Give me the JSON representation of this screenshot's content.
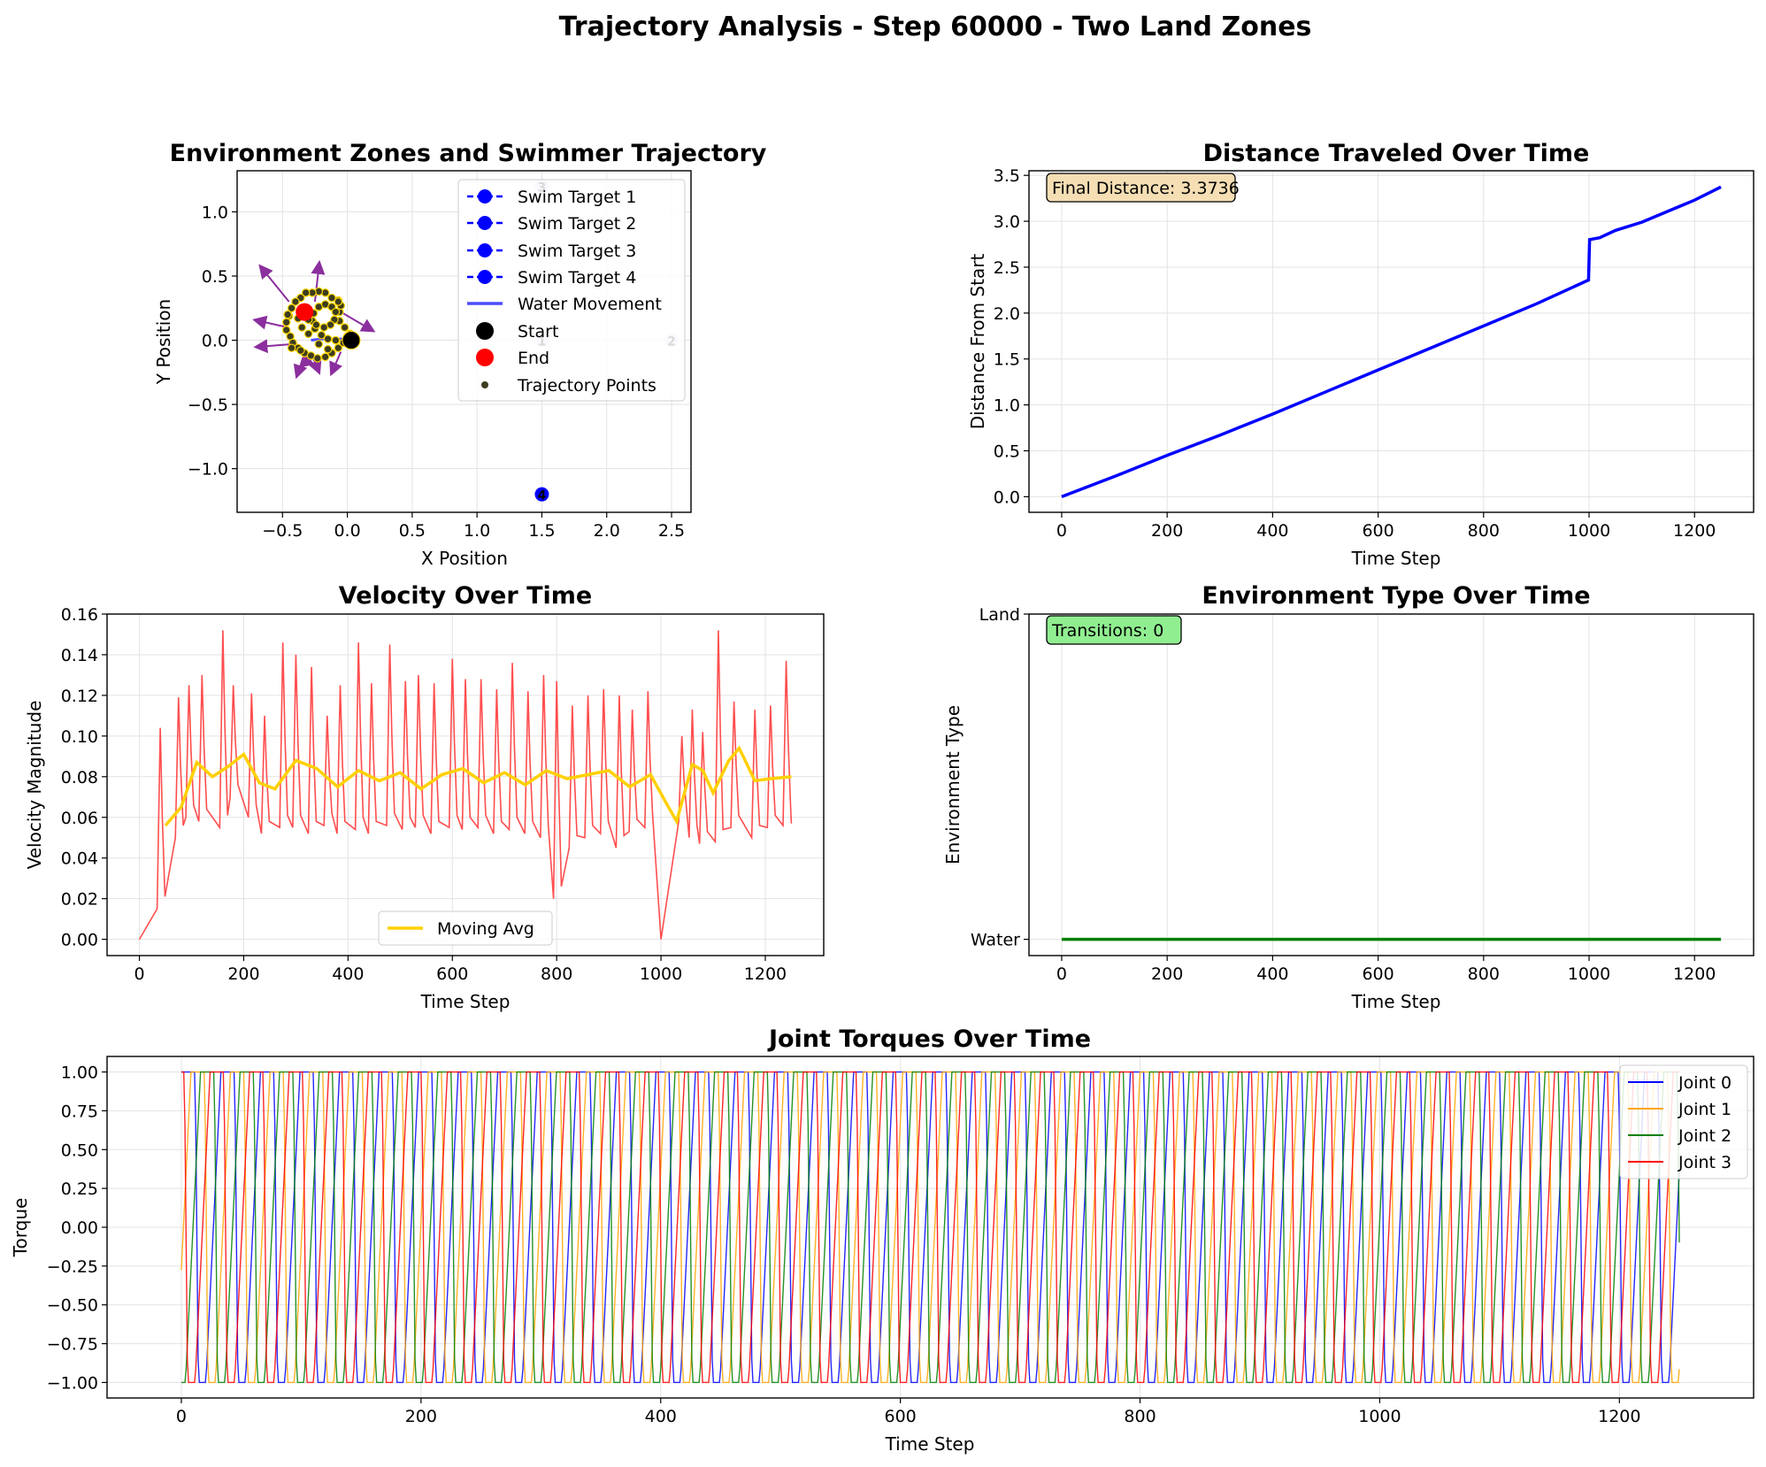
{
  "figure": {
    "title": "Trajectory Analysis - Step 60000 - Two Land Zones"
  },
  "colors": {
    "swim_target": "#0000ff",
    "water_movement": "#4d4dff",
    "start": "#000000",
    "end": "#ff0000",
    "trajectory_points": "#3d3d1f",
    "trajectory_point_edge": "#ffd700",
    "direction_arrows": "#8b2f9e",
    "distance_line": "#0000ff",
    "velocity_line": "#ff3b3b",
    "moving_avg": "#ffd000",
    "environment_line": "#008000",
    "final_distance_box": "#f5deb3",
    "transitions_box": "#90ee90",
    "joint0": "#0000ff",
    "joint1": "#ffa500",
    "joint2": "#008000",
    "joint3": "#ff0000"
  },
  "chart_data": [
    {
      "id": "trajectory",
      "type": "scatter",
      "title": "Environment Zones and Swimmer Trajectory",
      "xlabel": "X Position",
      "ylabel": "Y Position",
      "xlim": [
        -0.85,
        2.65
      ],
      "ylim": [
        -1.34,
        1.32
      ],
      "xticks": [
        -0.5,
        0.0,
        0.5,
        1.0,
        1.5,
        2.0,
        2.5
      ],
      "xtick_labels": [
        "−0.5",
        "0.0",
        "0.5",
        "1.0",
        "1.5",
        "2.0",
        "2.5"
      ],
      "yticks": [
        -1.0,
        -0.5,
        0.0,
        0.5,
        1.0
      ],
      "ytick_labels": [
        "−1.0",
        "−0.5",
        "0.0",
        "0.5",
        "1.0"
      ],
      "grid": true,
      "legend_position": "upper right",
      "legend": [
        "Swim Target 1",
        "Swim Target 2",
        "Swim Target 3",
        "Swim Target 4",
        "Water Movement",
        "Start",
        "End",
        "Trajectory Points"
      ],
      "swim_targets": [
        {
          "x": 1.5,
          "y": 0.0,
          "label": "1"
        },
        {
          "x": 2.5,
          "y": 0.0,
          "label": "2"
        },
        {
          "x": 1.5,
          "y": 1.2,
          "label": "3"
        },
        {
          "x": 1.5,
          "y": -1.2,
          "label": "4"
        }
      ],
      "start": {
        "x": 0.03,
        "y": 0.0
      },
      "end": {
        "x": -0.33,
        "y": 0.22
      },
      "water_path": [
        [
          0.03,
          0.0
        ],
        [
          -0.05,
          0.01
        ],
        [
          -0.2,
          0.01
        ],
        [
          -0.28,
          0.0
        ]
      ],
      "trajectory_points": [
        [
          0.03,
          0.0
        ],
        [
          0.02,
          0.05
        ],
        [
          -0.02,
          0.1
        ],
        [
          -0.06,
          0.15
        ],
        [
          -0.06,
          0.22
        ],
        [
          -0.05,
          0.27
        ],
        [
          -0.07,
          0.31
        ],
        [
          -0.12,
          0.33
        ],
        [
          -0.17,
          0.37
        ],
        [
          -0.22,
          0.38
        ],
        [
          -0.27,
          0.37
        ],
        [
          -0.32,
          0.37
        ],
        [
          -0.36,
          0.33
        ],
        [
          -0.4,
          0.3
        ],
        [
          -0.43,
          0.25
        ],
        [
          -0.45,
          0.19
        ],
        [
          -0.47,
          0.14
        ],
        [
          -0.47,
          0.08
        ],
        [
          -0.44,
          0.03
        ],
        [
          -0.42,
          -0.02
        ],
        [
          -0.38,
          -0.06
        ],
        [
          -0.33,
          -0.1
        ],
        [
          -0.28,
          -0.12
        ],
        [
          -0.23,
          -0.14
        ],
        [
          -0.17,
          -0.13
        ],
        [
          -0.12,
          -0.1
        ],
        [
          -0.07,
          -0.06
        ],
        [
          -0.03,
          -0.02
        ],
        [
          -0.09,
          0.0
        ],
        [
          -0.15,
          0.01
        ],
        [
          -0.2,
          0.04
        ],
        [
          -0.25,
          0.09
        ],
        [
          -0.27,
          0.15
        ],
        [
          -0.26,
          0.21
        ],
        [
          -0.22,
          0.26
        ],
        [
          -0.17,
          0.28
        ],
        [
          -0.12,
          0.26
        ],
        [
          -0.09,
          0.22
        ],
        [
          -0.1,
          0.16
        ],
        [
          -0.13,
          0.12
        ],
        [
          -0.18,
          0.1
        ],
        [
          -0.24,
          0.12
        ],
        [
          -0.3,
          0.16
        ],
        [
          -0.34,
          0.21
        ],
        [
          -0.38,
          0.17
        ],
        [
          -0.35,
          0.1
        ],
        [
          -0.3,
          0.05
        ],
        [
          -0.22,
          -0.03
        ],
        [
          -0.15,
          -0.07
        ],
        [
          -0.36,
          -0.08
        ],
        [
          -0.43,
          -0.06
        ],
        [
          -0.07,
          0.3
        ],
        [
          0.0,
          0.03
        ],
        [
          -0.46,
          0.2
        ]
      ],
      "direction_arrows": [
        [
          -0.45,
          0.3,
          -0.2,
          0.25
        ],
        [
          -0.46,
          0.1,
          -0.22,
          0.05
        ],
        [
          -0.42,
          -0.03,
          -0.25,
          -0.02
        ],
        [
          -0.34,
          -0.13,
          -0.04,
          -0.12
        ],
        [
          -0.27,
          -0.12,
          0.04,
          -0.1
        ],
        [
          -0.05,
          -0.09,
          -0.06,
          -0.14
        ],
        [
          -0.05,
          0.22,
          0.22,
          -0.13
        ],
        [
          -0.25,
          0.3,
          0.03,
          0.27
        ],
        [
          -0.27,
          -0.13,
          -0.06,
          -0.05
        ]
      ]
    },
    {
      "id": "distance",
      "type": "line",
      "title": "Distance Traveled Over Time",
      "xlabel": "Time Step",
      "ylabel": "Distance From Start",
      "xlim": [
        -62,
        1312
      ],
      "ylim": [
        -0.17,
        3.55
      ],
      "xticks": [
        0,
        200,
        400,
        600,
        800,
        1000,
        1200
      ],
      "xtick_labels": [
        "0",
        "200",
        "400",
        "600",
        "800",
        "1000",
        "1200"
      ],
      "yticks": [
        0.0,
        0.5,
        1.0,
        1.5,
        2.0,
        2.5,
        3.0,
        3.5
      ],
      "ytick_labels": [
        "0.0",
        "0.5",
        "1.0",
        "1.5",
        "2.0",
        "2.5",
        "3.0",
        "3.5"
      ],
      "grid": true,
      "annotation": "Final Distance: 3.3736",
      "series": [
        {
          "x": [
            0,
            100,
            200,
            300,
            400,
            500,
            600,
            700,
            800,
            900,
            999,
            1001,
            1020,
            1050,
            1100,
            1150,
            1200,
            1250
          ],
          "y": [
            0.0,
            0.22,
            0.45,
            0.67,
            0.9,
            1.14,
            1.38,
            1.62,
            1.86,
            2.1,
            2.36,
            2.8,
            2.82,
            2.9,
            2.99,
            3.11,
            3.23,
            3.3736
          ]
        }
      ]
    },
    {
      "id": "velocity",
      "type": "line",
      "title": "Velocity Over Time",
      "xlabel": "Time Step",
      "ylabel": "Velocity Magnitude",
      "xlim": [
        -62,
        1312
      ],
      "ylim": [
        -0.008,
        0.16
      ],
      "xticks": [
        0,
        200,
        400,
        600,
        800,
        1000,
        1200
      ],
      "xtick_labels": [
        "0",
        "200",
        "400",
        "600",
        "800",
        "1000",
        "1200"
      ],
      "yticks": [
        0.0,
        0.02,
        0.04,
        0.06,
        0.08,
        0.1,
        0.12,
        0.14,
        0.16
      ],
      "ytick_labels": [
        "0.00",
        "0.02",
        "0.04",
        "0.06",
        "0.08",
        "0.10",
        "0.12",
        "0.14",
        "0.16"
      ],
      "grid": true,
      "legend_position": "lower center",
      "legend": [
        "Moving Avg"
      ],
      "series": [
        {
          "name": "Moving Avg",
          "x": [
            50,
            80,
            110,
            140,
            170,
            200,
            230,
            260,
            300,
            340,
            380,
            420,
            460,
            500,
            540,
            580,
            620,
            660,
            700,
            740,
            780,
            820,
            860,
            900,
            940,
            980,
            1010,
            1030,
            1060,
            1080,
            1100,
            1130,
            1150,
            1180,
            1210,
            1250
          ],
          "y": [
            0.056,
            0.065,
            0.087,
            0.08,
            0.085,
            0.091,
            0.077,
            0.074,
            0.088,
            0.084,
            0.075,
            0.083,
            0.078,
            0.082,
            0.074,
            0.081,
            0.084,
            0.077,
            0.082,
            0.076,
            0.083,
            0.079,
            0.081,
            0.083,
            0.075,
            0.081,
            0.067,
            0.058,
            0.086,
            0.083,
            0.072,
            0.088,
            0.094,
            0.078,
            0.079,
            0.08
          ]
        }
      ],
      "raw_velocity": {
        "peak_steps": [
          40,
          75,
          95,
          120,
          160,
          180,
          215,
          240,
          275,
          300,
          330,
          360,
          385,
          420,
          445,
          480,
          510,
          535,
          565,
          600,
          625,
          655,
          685,
          715,
          745,
          775,
          800,
          830,
          860,
          890,
          920,
          945,
          975,
          1040,
          1060,
          1080,
          1110,
          1140,
          1180,
          1210,
          1240
        ],
        "peak_values": [
          0.104,
          0.119,
          0.125,
          0.13,
          0.152,
          0.125,
          0.121,
          0.11,
          0.146,
          0.14,
          0.134,
          0.11,
          0.125,
          0.146,
          0.126,
          0.145,
          0.127,
          0.13,
          0.126,
          0.138,
          0.128,
          0.128,
          0.123,
          0.136,
          0.122,
          0.13,
          0.127,
          0.115,
          0.12,
          0.123,
          0.12,
          0.113,
          0.122,
          0.1,
          0.113,
          0.102,
          0.152,
          0.117,
          0.113,
          0.115,
          0.137
        ],
        "trough_values": [
          0.015,
          0.05,
          0.06,
          0.058,
          0.055,
          0.07,
          0.06,
          0.052,
          0.055,
          0.055,
          0.052,
          0.056,
          0.052,
          0.054,
          0.052,
          0.056,
          0.054,
          0.055,
          0.052,
          0.055,
          0.054,
          0.055,
          0.052,
          0.054,
          0.052,
          0.05,
          0.02,
          0.045,
          0.05,
          0.052,
          0.045,
          0.053,
          0.055,
          0.058,
          0.05,
          0.047,
          0.048,
          0.055,
          0.05,
          0.055,
          0.056
        ],
        "zero_steps": [
          0,
          1000
        ],
        "start": 0.0,
        "end": 0.057
      }
    },
    {
      "id": "environment",
      "type": "line",
      "title": "Environment Type Over Time",
      "xlabel": "Time Step",
      "ylabel": "Environment Type",
      "xlim": [
        -62,
        1312
      ],
      "ylim": [
        -0.05,
        1.0
      ],
      "xticks": [
        0,
        200,
        400,
        600,
        800,
        1000,
        1200
      ],
      "xtick_labels": [
        "0",
        "200",
        "400",
        "600",
        "800",
        "1000",
        "1200"
      ],
      "yticks": [
        0,
        1
      ],
      "ytick_labels": [
        "Water",
        "Land"
      ],
      "grid": true,
      "annotation": "Transitions: 0",
      "series": [
        {
          "x": [
            0,
            1250
          ],
          "y": [
            0,
            0
          ]
        }
      ]
    },
    {
      "id": "torques",
      "type": "line",
      "title": "Joint Torques Over Time",
      "xlabel": "Time Step",
      "ylabel": "Torque",
      "xlim": [
        -62,
        1312
      ],
      "ylim": [
        -1.1,
        1.1
      ],
      "xticks": [
        0,
        200,
        400,
        600,
        800,
        1000,
        1200
      ],
      "xtick_labels": [
        "0",
        "200",
        "400",
        "600",
        "800",
        "1000",
        "1200"
      ],
      "yticks": [
        -1.0,
        -0.75,
        -0.5,
        -0.25,
        0.0,
        0.25,
        0.5,
        0.75,
        1.0
      ],
      "ytick_labels": [
        "−1.00",
        "−0.75",
        "−0.50",
        "−0.25",
        "0.00",
        "0.25",
        "0.50",
        "0.75",
        "1.00"
      ],
      "grid": true,
      "legend_position": "upper right",
      "legend": [
        "Joint 0",
        "Joint 1",
        "Joint 2",
        "Joint 3"
      ],
      "series": [
        {
          "name": "Joint 0",
          "pattern": "bang-bang square wave with ramped transitions",
          "period_steps": 33,
          "phase_steps": 0,
          "min": -1.0,
          "max": 1.0,
          "x_range": [
            0,
            1250
          ]
        },
        {
          "name": "Joint 1",
          "pattern": "bang-bang square wave with ramped transitions",
          "period_steps": 33,
          "phase_steps": 8,
          "min": -1.0,
          "max": 1.0,
          "x_range": [
            0,
            1250
          ]
        },
        {
          "name": "Joint 2",
          "pattern": "bang-bang square wave with ramped transitions",
          "period_steps": 33,
          "phase_steps": 16,
          "min": -1.0,
          "max": 1.0,
          "x_range": [
            0,
            1250
          ]
        },
        {
          "name": "Joint 3",
          "pattern": "bang-bang square wave with ramped transitions",
          "period_steps": 33,
          "phase_steps": 24,
          "min": -1.0,
          "max": 1.0,
          "x_range": [
            0,
            1250
          ]
        }
      ]
    }
  ]
}
